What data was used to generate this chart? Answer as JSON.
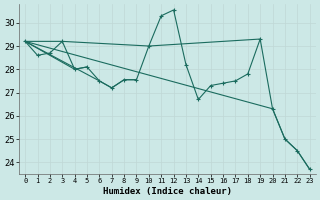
{
  "xlabel": "Humidex (Indice chaleur)",
  "ylim": [
    23.5,
    30.8
  ],
  "xlim": [
    -0.5,
    23.5
  ],
  "yticks": [
    24,
    25,
    26,
    27,
    28,
    29,
    30
  ],
  "bg_color": "#cce8e6",
  "line_color": "#1a6b5e",
  "main_line": [
    29.2,
    28.6,
    28.7,
    29.2,
    28.0,
    28.1,
    27.5,
    27.2,
    27.55,
    27.55,
    29.0,
    30.3,
    30.55,
    28.2,
    26.7,
    27.3,
    27.4,
    27.5,
    27.8,
    29.3,
    26.3,
    25.0,
    24.5,
    23.7
  ],
  "flat_line": {
    "x": [
      0,
      3,
      10,
      19
    ],
    "y": [
      29.2,
      29.2,
      29.0,
      29.3
    ]
  },
  "line2": {
    "x": [
      0,
      4,
      5
    ],
    "y": [
      29.2,
      28.0,
      28.1
    ]
  },
  "line3": {
    "x": [
      0,
      6,
      7,
      8,
      9
    ],
    "y": [
      29.2,
      27.5,
      27.2,
      27.55,
      27.55
    ]
  },
  "diag_line": {
    "x": [
      0,
      20,
      21,
      22,
      23
    ],
    "y": [
      29.2,
      26.3,
      25.0,
      24.5,
      23.7
    ]
  }
}
